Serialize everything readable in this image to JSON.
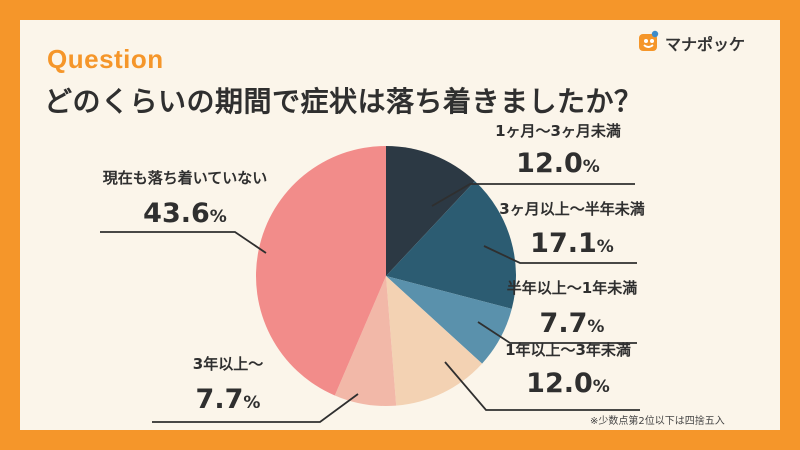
{
  "header": {
    "label": "Question",
    "title": "どのくらいの期間で症状は落ち着きましたか？"
  },
  "brand": {
    "name": "マナポッケ",
    "icon": "manapocke-logo-icon"
  },
  "footnote": "※少数点第2位以下は四捨五入",
  "chart_data": {
    "type": "pie",
    "title": "どのくらいの期間で症状は落ち着きましたか？",
    "unit": "%",
    "start_angle": "12 o'clock",
    "direction": "clockwise",
    "slices": [
      {
        "label": "1ヶ月〜3ヶ月未満",
        "value": 12.0,
        "display": "12.0",
        "color": "#2C3944"
      },
      {
        "label": "3ヶ月以上〜半年未満",
        "value": 17.1,
        "display": "17.1",
        "color": "#2C5C72"
      },
      {
        "label": "半年以上〜1年未満",
        "value": 7.7,
        "display": "7.7",
        "color": "#5A91AC"
      },
      {
        "label": "1年以上〜3年未満",
        "value": 12.0,
        "display": "12.0",
        "color": "#F3D2B3"
      },
      {
        "label": "3年以上〜",
        "value": 7.7,
        "display": "7.7",
        "color": "#F2B8A8"
      },
      {
        "label": "現在も落ち着いていない",
        "value": 43.6,
        "display": "43.6",
        "color": "#F28C8A"
      }
    ]
  }
}
